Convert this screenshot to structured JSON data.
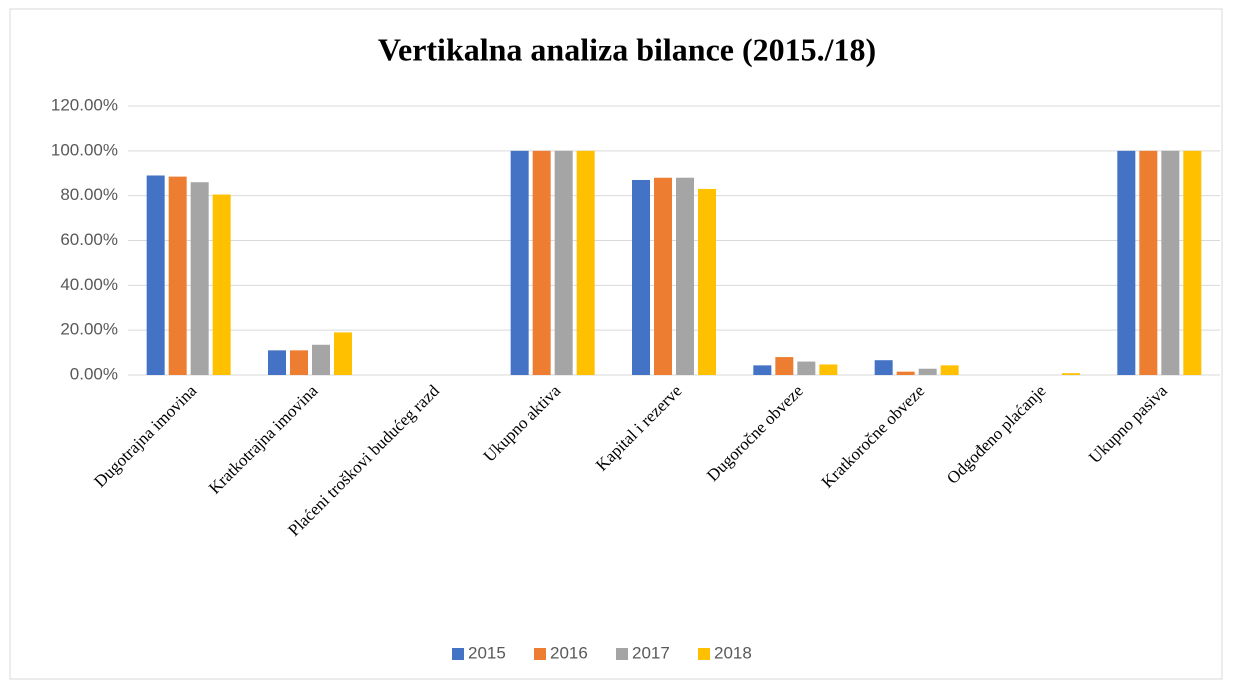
{
  "chart_data": {
    "type": "bar",
    "title": "Vertikalna analiza bilance (2015./18)",
    "categories": [
      "Dugotrajna imovina",
      "Kratkotrajna imovina",
      "Plaćeni troškovi budućeg razd",
      "Ukupno aktiva",
      "Kapital i rezerve",
      "Dugoročne obveze",
      "Kratkoročne obveze",
      "Odgođeno plaćanje",
      "Ukupno pasiva"
    ],
    "series": [
      {
        "name": "2015",
        "color": "#4472c4",
        "values": [
          89,
          11,
          0,
          100,
          87,
          4.3,
          6.6,
          0,
          100
        ]
      },
      {
        "name": "2016",
        "color": "#ed7d31",
        "values": [
          88.5,
          11,
          0,
          100,
          88,
          8,
          1.5,
          0,
          100
        ]
      },
      {
        "name": "2017",
        "color": "#a5a5a5",
        "values": [
          86,
          13.5,
          0,
          100,
          88,
          6,
          2.8,
          0,
          100
        ]
      },
      {
        "name": "2018",
        "color": "#ffc000",
        "values": [
          80.5,
          19,
          0,
          100,
          83,
          4.7,
          4.3,
          0.8,
          100
        ]
      }
    ],
    "ylim": [
      0,
      120
    ],
    "yticks": [
      {
        "value": 0,
        "label": "0.00%"
      },
      {
        "value": 20,
        "label": "20.00%"
      },
      {
        "value": 40,
        "label": "40.00%"
      },
      {
        "value": 60,
        "label": "60.00%"
      },
      {
        "value": 80,
        "label": "80.00%"
      },
      {
        "value": 100,
        "label": "100.00%"
      },
      {
        "value": 120,
        "label": "120.00%"
      }
    ],
    "grid": true,
    "legend": "bottom"
  }
}
